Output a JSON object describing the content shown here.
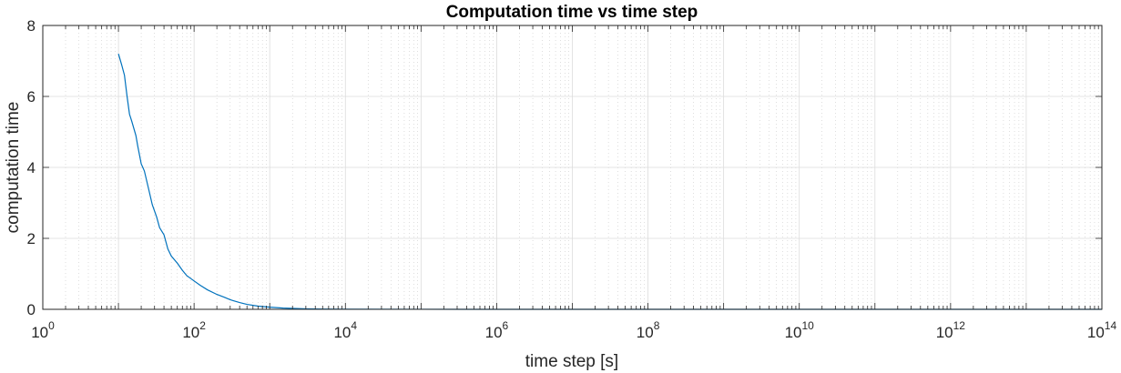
{
  "chart_data": {
    "type": "line",
    "title": "Computation time vs time step",
    "xlabel": "time step [s]",
    "ylabel": "computation time",
    "xscale": "log",
    "xlim": [
      1,
      100000000000000
    ],
    "ylim": [
      0,
      8
    ],
    "xticks": [
      {
        "value": 1,
        "base": "10",
        "exp": "0"
      },
      {
        "value": 100,
        "base": "10",
        "exp": "2"
      },
      {
        "value": 10000,
        "base": "10",
        "exp": "4"
      },
      {
        "value": 1000000,
        "base": "10",
        "exp": "6"
      },
      {
        "value": 100000000,
        "base": "10",
        "exp": "8"
      },
      {
        "value": 10000000000,
        "base": "10",
        "exp": "10"
      },
      {
        "value": 1000000000000,
        "base": "10",
        "exp": "12"
      },
      {
        "value": 100000000000000,
        "base": "10",
        "exp": "14"
      }
    ],
    "yticks": [
      0,
      2,
      4,
      6,
      8
    ],
    "grid": true,
    "minor_grid": true,
    "line_color": "#0072bd",
    "series": [
      {
        "x": [
          10,
          11,
          12,
          13,
          14,
          15,
          17,
          18,
          20,
          22,
          25,
          28,
          32,
          35,
          40,
          45,
          50,
          60,
          70,
          80,
          100,
          120,
          150,
          200,
          250,
          300,
          400,
          500,
          700,
          1000,
          1500,
          2000,
          3000,
          5000,
          10000,
          100000,
          1000000,
          10000000,
          100000000,
          1000000000,
          10000000000,
          100000000000,
          1000000000000,
          10000000000000,
          100000000000000
        ],
        "y": [
          7.2,
          6.9,
          6.6,
          6.0,
          5.5,
          5.3,
          4.9,
          4.6,
          4.1,
          3.9,
          3.4,
          2.95,
          2.6,
          2.3,
          2.1,
          1.7,
          1.5,
          1.3,
          1.1,
          0.95,
          0.8,
          0.68,
          0.55,
          0.42,
          0.34,
          0.27,
          0.19,
          0.14,
          0.09,
          0.06,
          0.035,
          0.025,
          0.015,
          0.008,
          0.004,
          0.001,
          0.0005,
          0.0003,
          0.0002,
          0.0001,
          0.0001,
          0.0001,
          0.0001,
          0.0001,
          0.0001
        ]
      }
    ]
  }
}
